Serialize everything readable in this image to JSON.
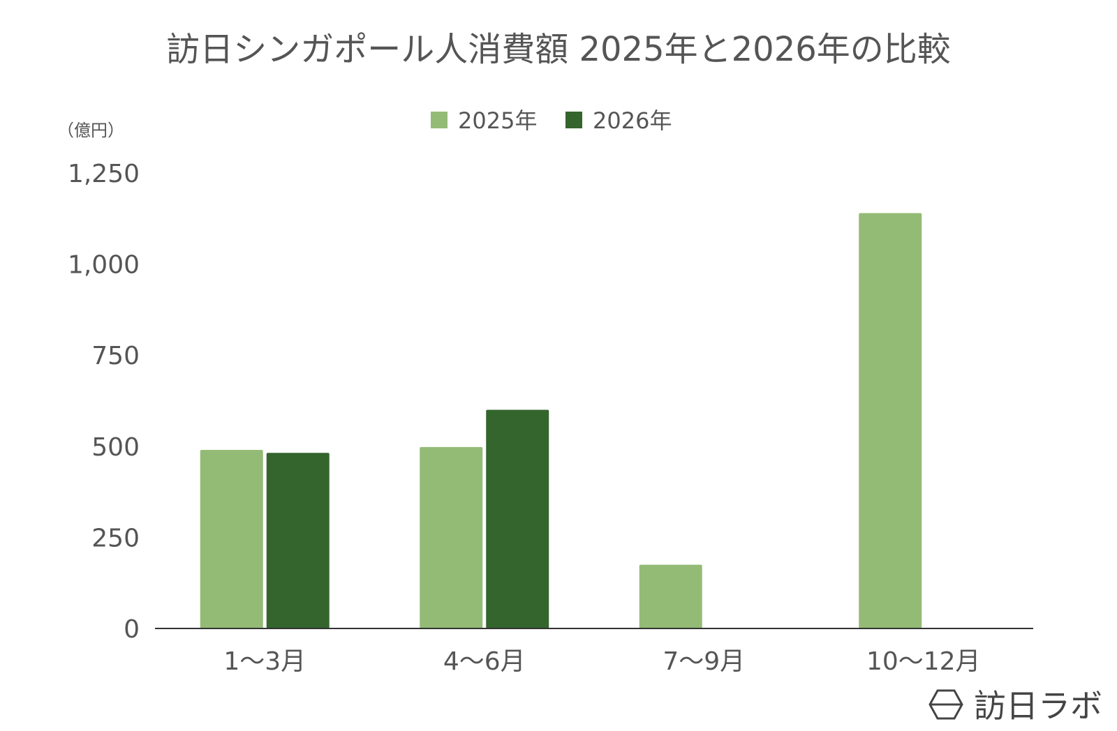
{
  "chart_data": {
    "type": "bar",
    "title": "訪日シンガポール人消費額 2025年と2026年の比較",
    "ylabel": "（億円）",
    "xlabel": "",
    "categories": [
      "1〜3月",
      "4〜6月",
      "7〜9月",
      "10〜12月"
    ],
    "series": [
      {
        "name": "2025年",
        "color": "#93bb76",
        "values": [
          490,
          498,
          175,
          1140
        ]
      },
      {
        "name": "2026年",
        "color": "#33652d",
        "values": [
          482,
          600,
          null,
          null
        ]
      }
    ],
    "ylim": [
      0,
      1250
    ],
    "yticks": [
      "0",
      "250",
      "500",
      "750",
      "1,000",
      "1,250"
    ],
    "ytick_values": [
      0,
      250,
      500,
      750,
      1000,
      1250
    ],
    "grid": false,
    "legend_position": "top-center"
  },
  "brand": {
    "text": "訪日ラボ",
    "icon": "hexagon-logo-icon"
  }
}
